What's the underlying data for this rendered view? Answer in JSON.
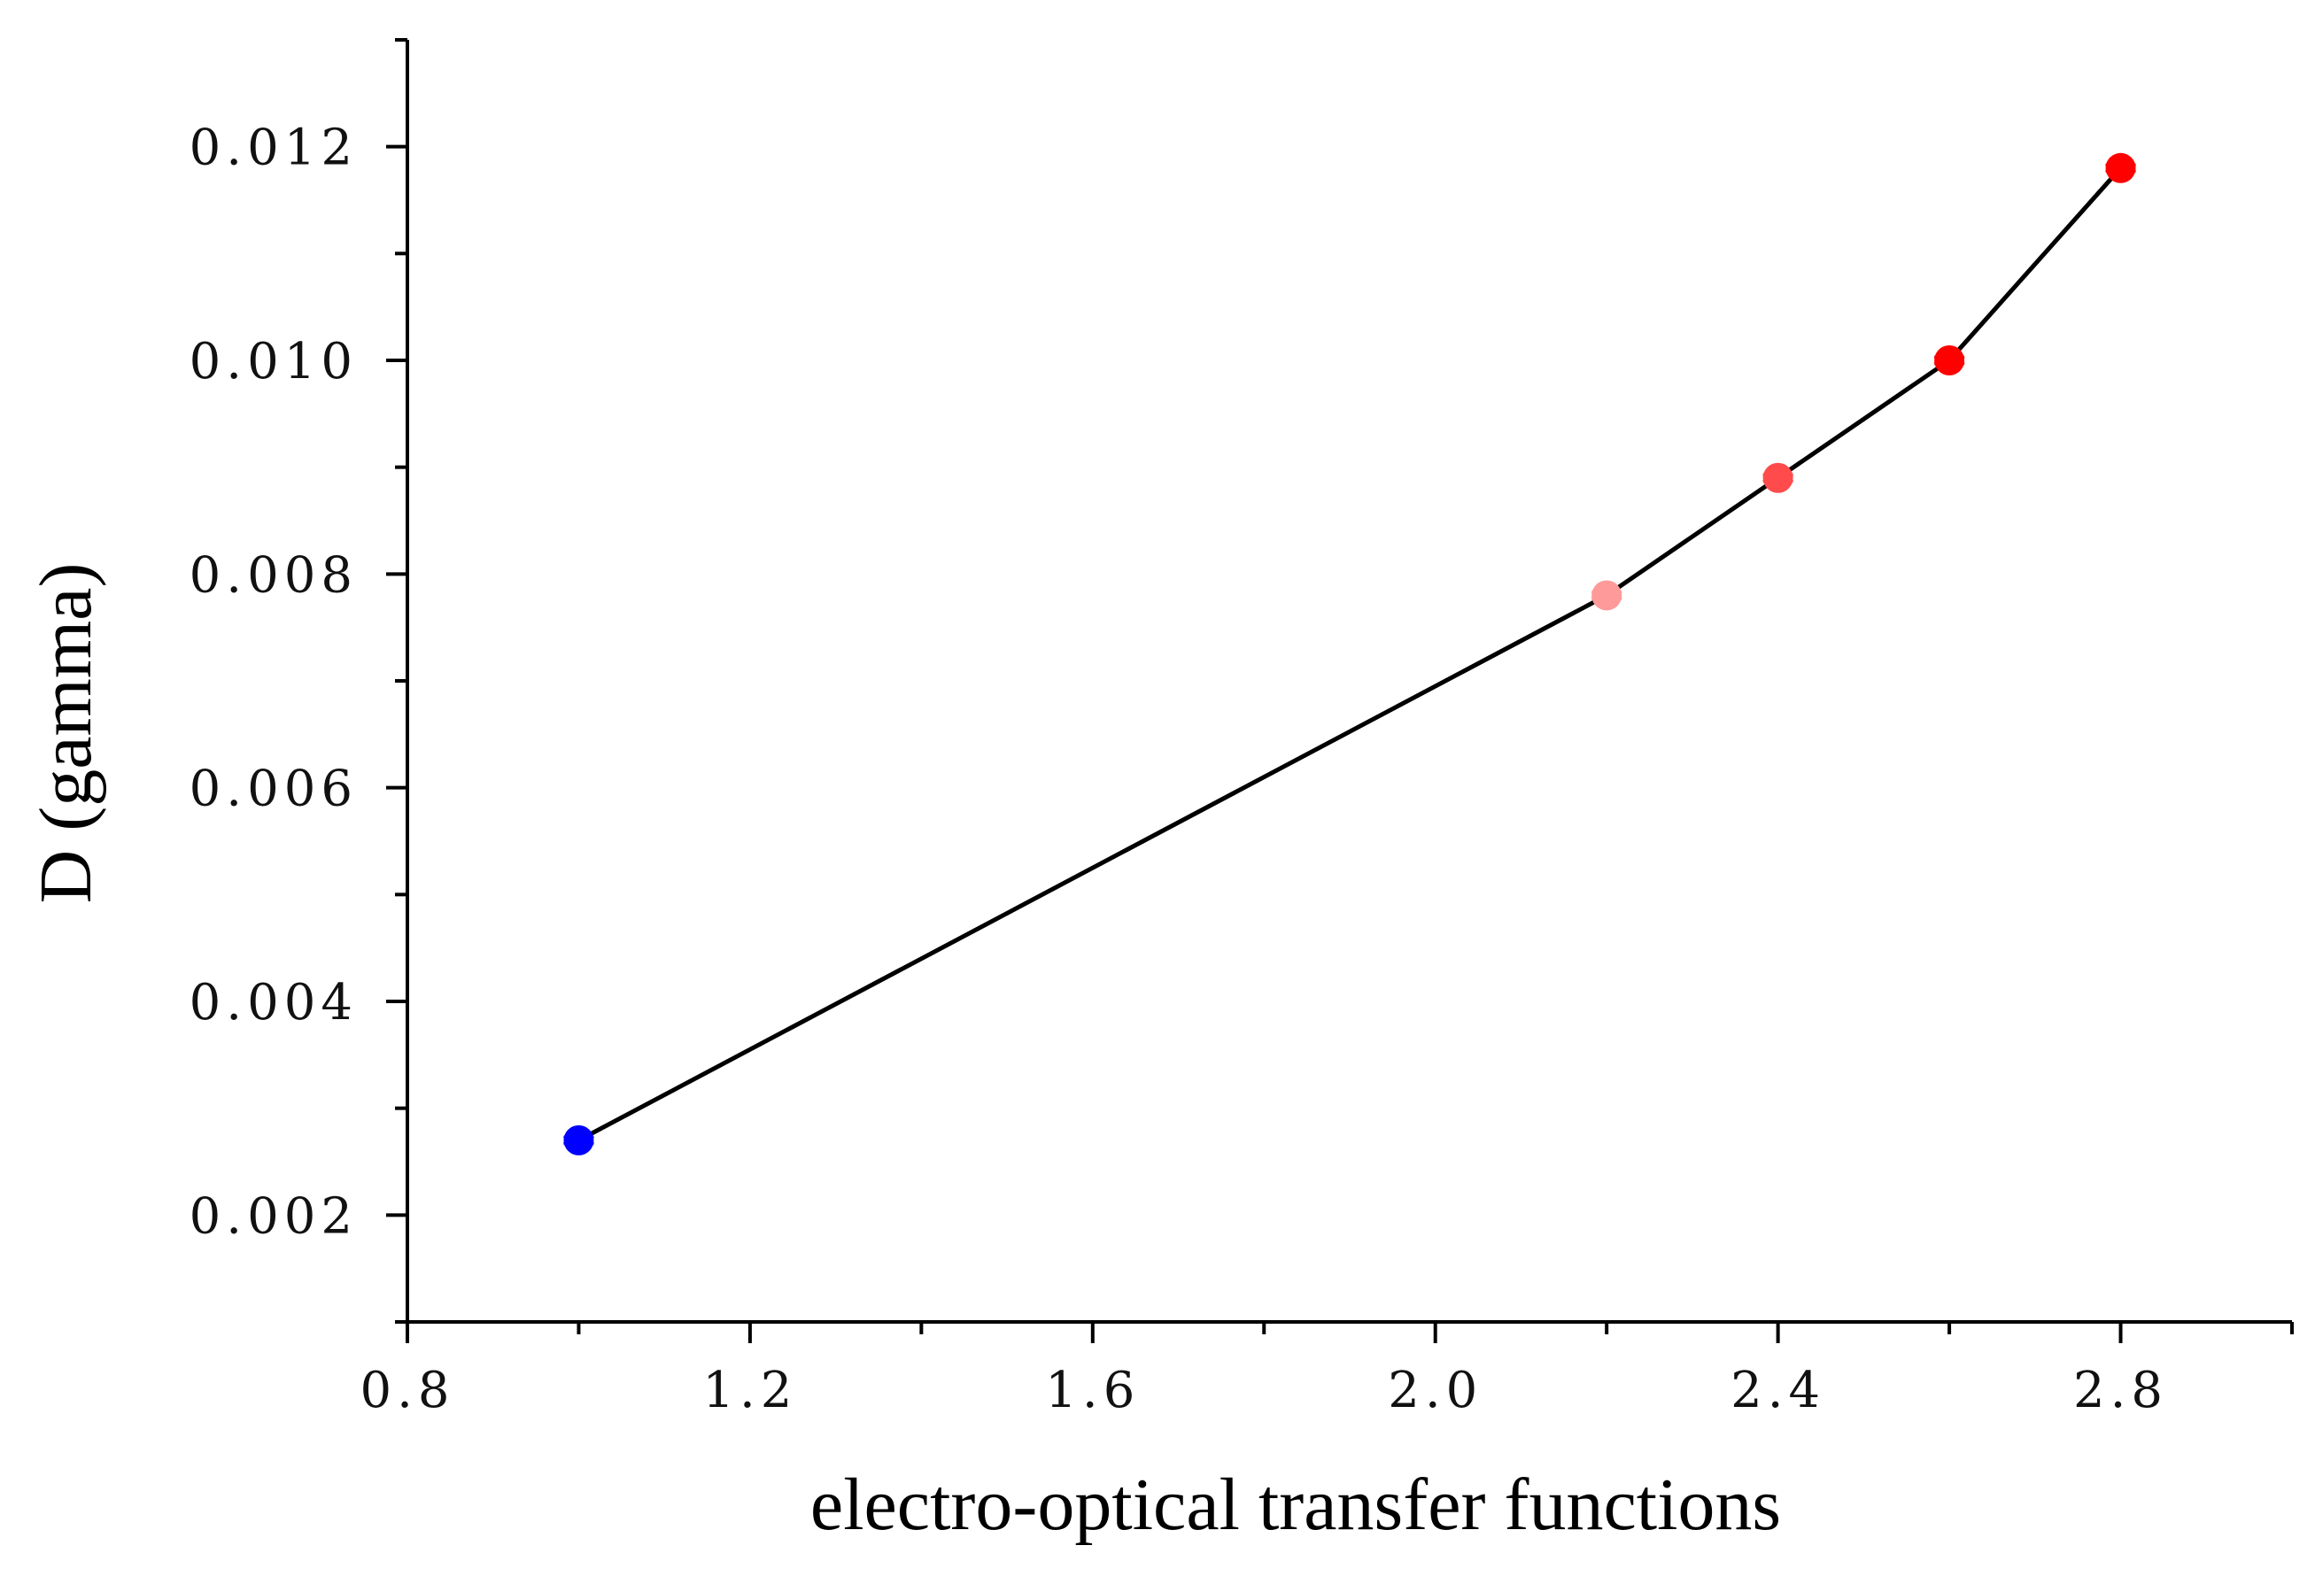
{
  "chart_data": {
    "type": "line",
    "title": "",
    "xlabel": "electro-optical transfer functions",
    "ylabel": "D (gamma)",
    "xlim": [
      0.8,
      3.0
    ],
    "ylim": [
      0.001,
      0.013
    ],
    "x_ticks": [
      0.8,
      1.2,
      1.6,
      2.0,
      2.4,
      2.8
    ],
    "x_tick_labels": [
      "0.8",
      "1.2",
      "1.6",
      "2.0",
      "2.4",
      "2.8"
    ],
    "y_ticks": [
      0.002,
      0.004,
      0.006,
      0.008,
      0.01,
      0.012
    ],
    "y_tick_labels": [
      "0.002",
      "0.004",
      "0.006",
      "0.008",
      "0.010",
      "0.012"
    ],
    "grid": false,
    "legend": "none",
    "line_color": "#000000",
    "series": [
      {
        "x": [
          1.0,
          2.2,
          2.4,
          2.6,
          2.8
        ],
        "y": [
          0.0027,
          0.0078,
          0.0089,
          0.01,
          0.0118
        ],
        "point_colors": [
          "#0000ff",
          "#ff9a9a",
          "#ff4b4b",
          "#ff0000",
          "#ff0000"
        ]
      }
    ]
  }
}
